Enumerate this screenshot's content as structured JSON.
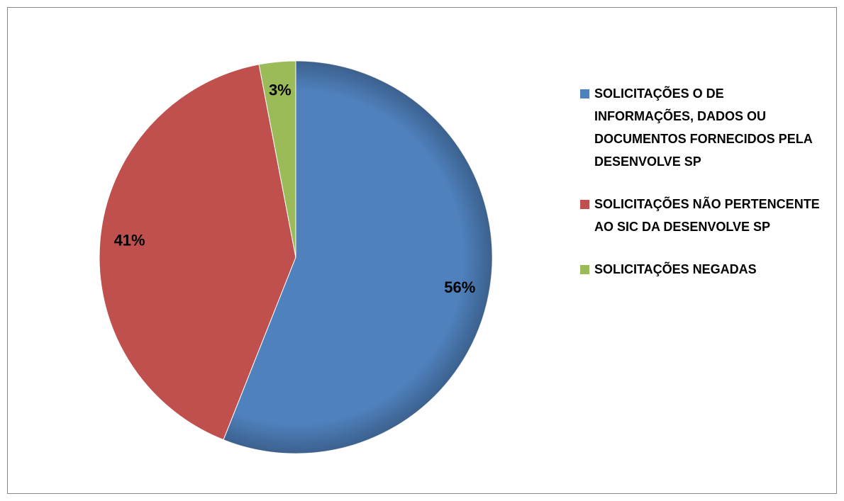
{
  "chart_data": {
    "type": "pie",
    "categories": [
      "SOLICITAÇÕES O DE INFORMAÇÕES, DADOS OU DOCUMENTOS FORNECIDOS PELA DESENVOLVE SP",
      "SOLICITAÇÕES NÃO PERTENCENTE AO SIC DA DESENVOLVE SP",
      "SOLICITAÇÕES NEGADAS"
    ],
    "values": [
      56,
      41,
      3
    ],
    "value_labels": [
      "56%",
      "41%",
      "3%"
    ],
    "colors": [
      "#4f81bd",
      "#c0504d",
      "#9bbb59"
    ],
    "legend": "right"
  }
}
